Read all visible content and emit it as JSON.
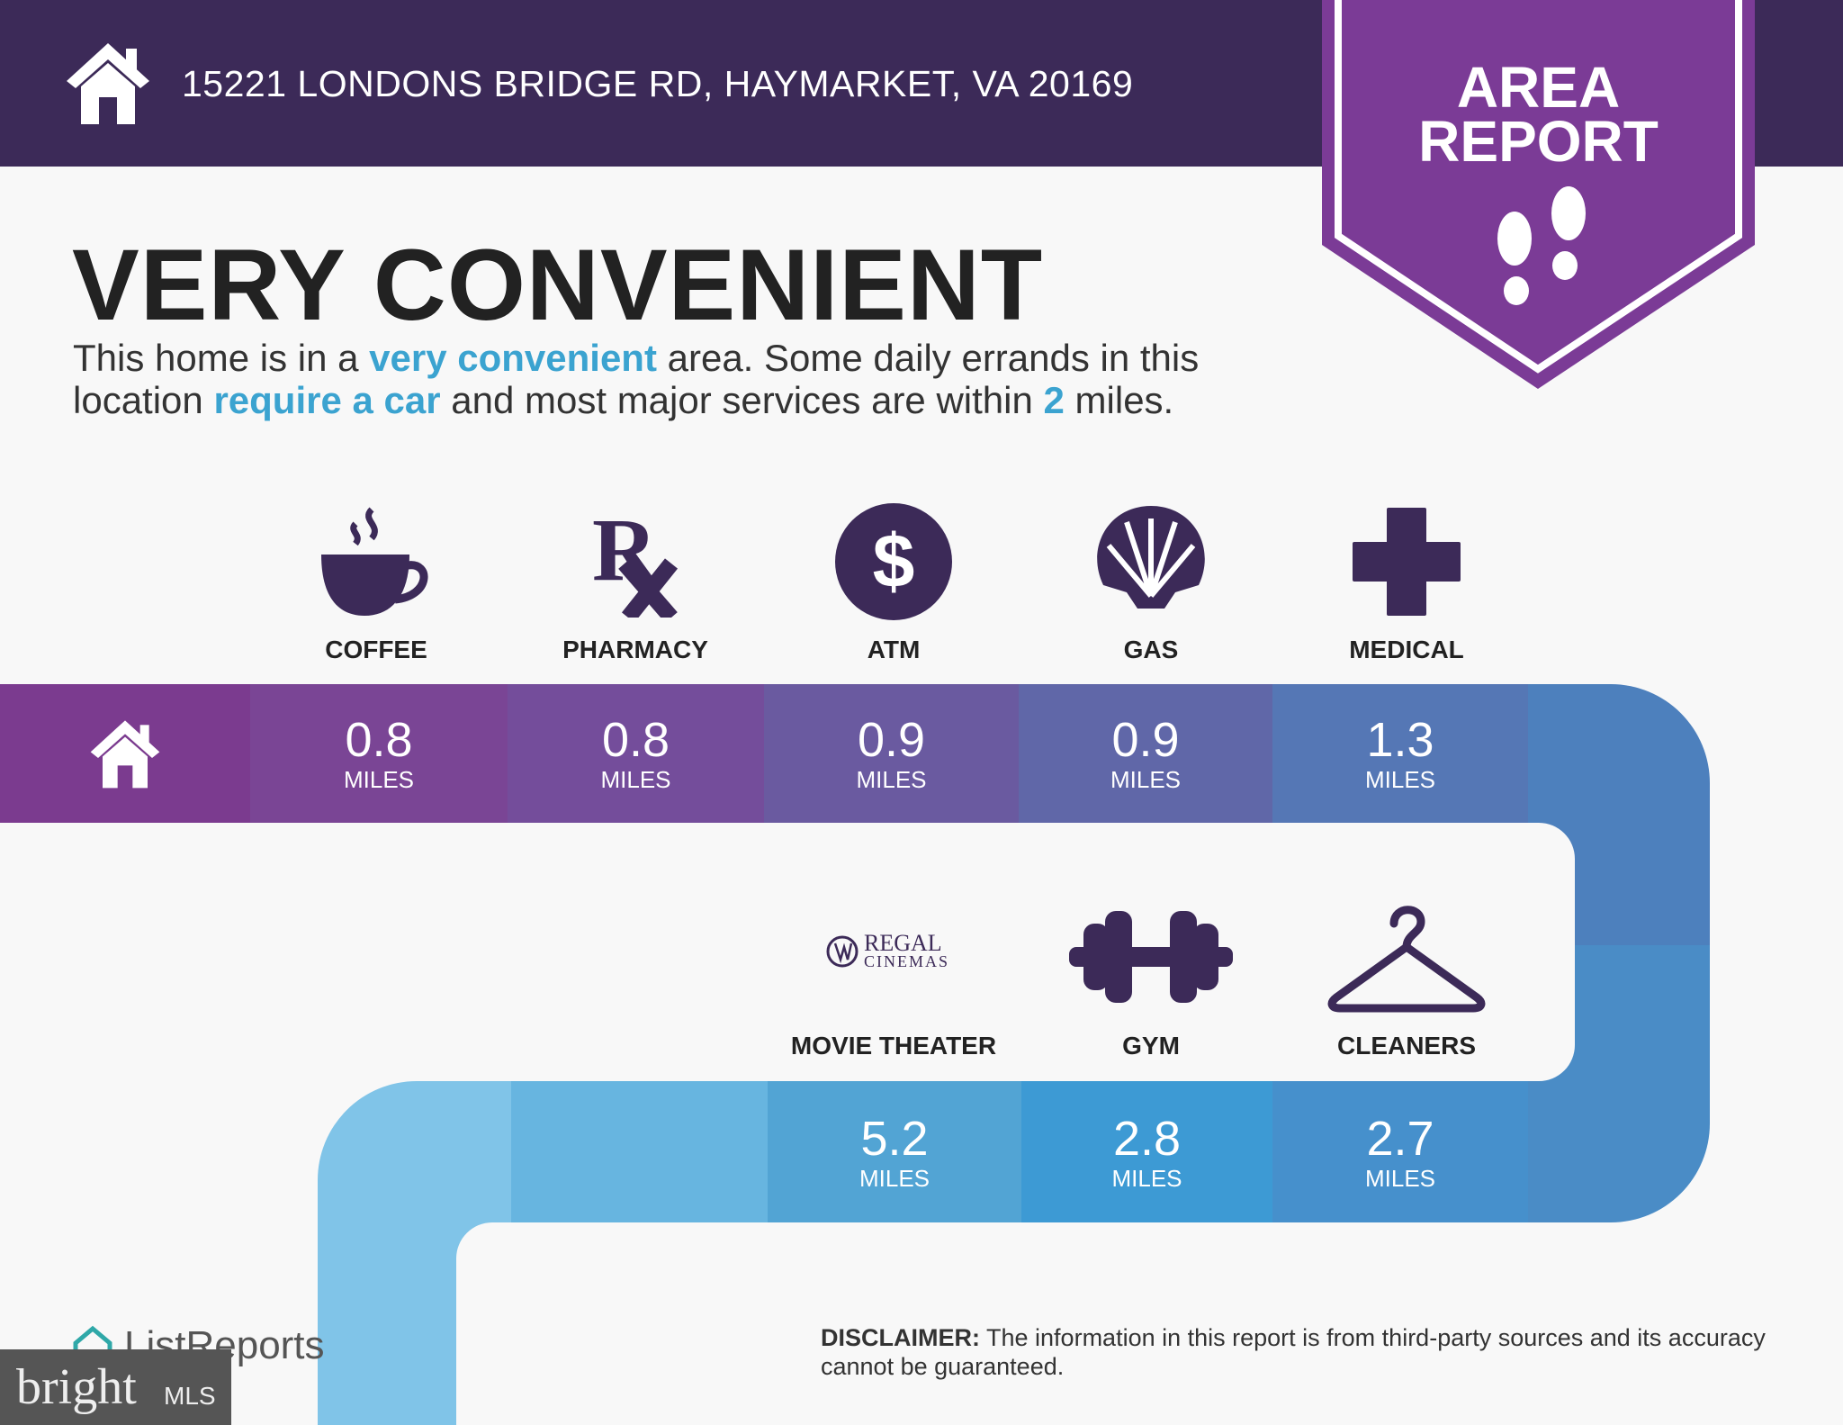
{
  "header": {
    "address": "15221 LONDONS BRIDGE RD, HAYMARKET, VA 20169",
    "home_icon": "house-icon"
  },
  "badge": {
    "line1": "AREA",
    "line2": "REPORT",
    "icon": "footprints-icon",
    "color": "#7b3b96"
  },
  "headline": "VERY CONVENIENT",
  "description": {
    "p1": "This home is in a ",
    "h1": "very convenient",
    "p2": " area. Some daily errands in this",
    "p3": "location ",
    "h2": "require a car",
    "p4": " and most major services are within ",
    "h3": "2",
    "p5": " miles."
  },
  "row1": [
    {
      "label": "COFFEE",
      "value": "0.8",
      "unit": "MILES",
      "icon": "coffee-cup-icon"
    },
    {
      "label": "PHARMACY",
      "value": "0.8",
      "unit": "MILES",
      "icon": "rx-icon"
    },
    {
      "label": "ATM",
      "value": "0.9",
      "unit": "MILES",
      "icon": "dollar-icon"
    },
    {
      "label": "GAS",
      "value": "0.9",
      "unit": "MILES",
      "icon": "shell-icon"
    },
    {
      "label": "MEDICAL",
      "value": "1.3",
      "unit": "MILES",
      "icon": "medical-cross-icon"
    }
  ],
  "row2": [
    {
      "label": "MOVIE THEATER",
      "value": "5.2",
      "unit": "MILES",
      "icon": "regal-cinemas-logo",
      "logo_text1": "REGAL",
      "logo_text2": "CINEMAS"
    },
    {
      "label": "GYM",
      "value": "2.8",
      "unit": "MILES",
      "icon": "dumbbell-icon"
    },
    {
      "label": "CLEANERS",
      "value": "2.7",
      "unit": "MILES",
      "icon": "hanger-icon"
    }
  ],
  "footer": {
    "brand": "ListReports",
    "disclaimer_label": "DISCLAIMER:",
    "disclaimer": " The information in this report is from third-party sources and its accuracy cannot be guaranteed.",
    "mls1": "bright",
    "mls2": "MLS"
  },
  "colors": {
    "header": "#3c2a58",
    "accent": "#3ba3d0",
    "icon": "#3c2a58"
  }
}
